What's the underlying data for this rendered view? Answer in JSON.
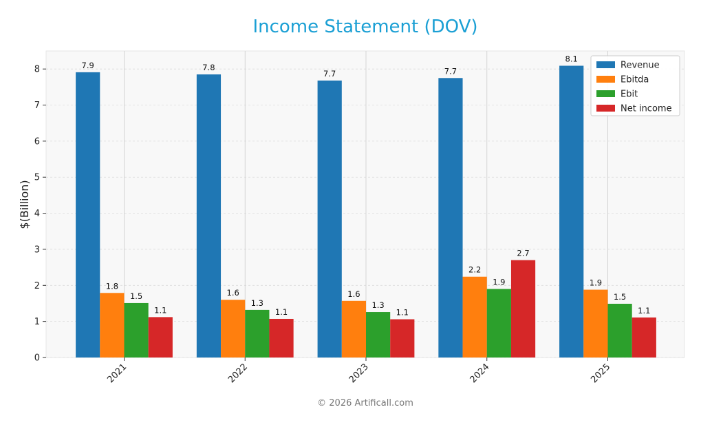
{
  "footer": "© 2026 Artificall.com",
  "chart_data": {
    "type": "bar",
    "title": "Income Statement (DOV)",
    "xlabel": "",
    "ylabel": "$(Billion)",
    "categories": [
      "2021",
      "2022",
      "2023",
      "2024",
      "2025"
    ],
    "series": [
      {
        "name": "Revenue",
        "color": "#1f77b4",
        "values": [
          7.9,
          7.8,
          7.7,
          7.7,
          8.1
        ],
        "actual": [
          7.91,
          7.85,
          7.68,
          7.75,
          8.09
        ]
      },
      {
        "name": "Ebitda",
        "color": "#ff7f0e",
        "values": [
          1.8,
          1.6,
          1.6,
          2.2,
          1.9
        ],
        "actual": [
          1.79,
          1.6,
          1.57,
          2.24,
          1.88
        ]
      },
      {
        "name": "Ebit",
        "color": "#2ca02c",
        "values": [
          1.5,
          1.3,
          1.3,
          1.9,
          1.5
        ],
        "actual": [
          1.51,
          1.32,
          1.26,
          1.9,
          1.49
        ]
      },
      {
        "name": "Net income",
        "color": "#d62728",
        "values": [
          1.1,
          1.1,
          1.1,
          2.7,
          1.1
        ],
        "actual": [
          1.12,
          1.07,
          1.06,
          2.7,
          1.11
        ]
      }
    ],
    "ylim": [
      0,
      8.5
    ],
    "yticks": [
      0,
      1,
      2,
      3,
      4,
      5,
      6,
      7,
      8
    ],
    "grid": true,
    "legend_position": "top-right"
  }
}
